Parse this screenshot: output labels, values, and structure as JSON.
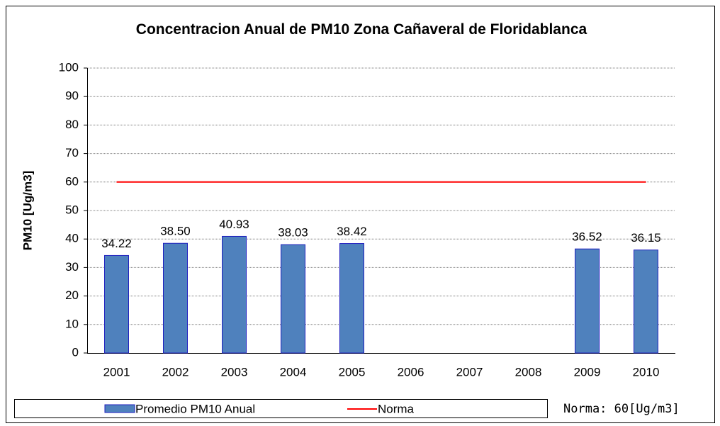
{
  "chart_data": {
    "type": "bar",
    "title": "Concentracion  Anual de PM10 Zona Cañaveral de Floridablanca",
    "ylabel": "PM10 [Ug/m3]",
    "categories": [
      "2001",
      "2002",
      "2003",
      "2004",
      "2005",
      "2006",
      "2007",
      "2008",
      "2009",
      "2010"
    ],
    "series": [
      {
        "name": "Promedio PM10 Anual",
        "type": "bar",
        "color": "#4f81bd",
        "values": [
          34.22,
          38.5,
          40.93,
          38.03,
          38.42,
          null,
          null,
          null,
          36.52,
          36.15
        ],
        "value_labels": [
          "34.22",
          "38.50",
          "40.93",
          "38.03",
          "38.42",
          null,
          null,
          null,
          "36.52",
          "36.15"
        ]
      },
      {
        "name": "Norma",
        "type": "line",
        "color": "#ff0000",
        "values": [
          60,
          60,
          60,
          60,
          60,
          60,
          60,
          60,
          60,
          60
        ]
      }
    ],
    "ylim": [
      0,
      100
    ],
    "yticks": [
      0,
      10,
      20,
      30,
      40,
      50,
      60,
      70,
      80,
      90,
      100
    ],
    "grid": true,
    "legend": "bottom",
    "annotation": "Norma: 60[Ug/m3]"
  }
}
